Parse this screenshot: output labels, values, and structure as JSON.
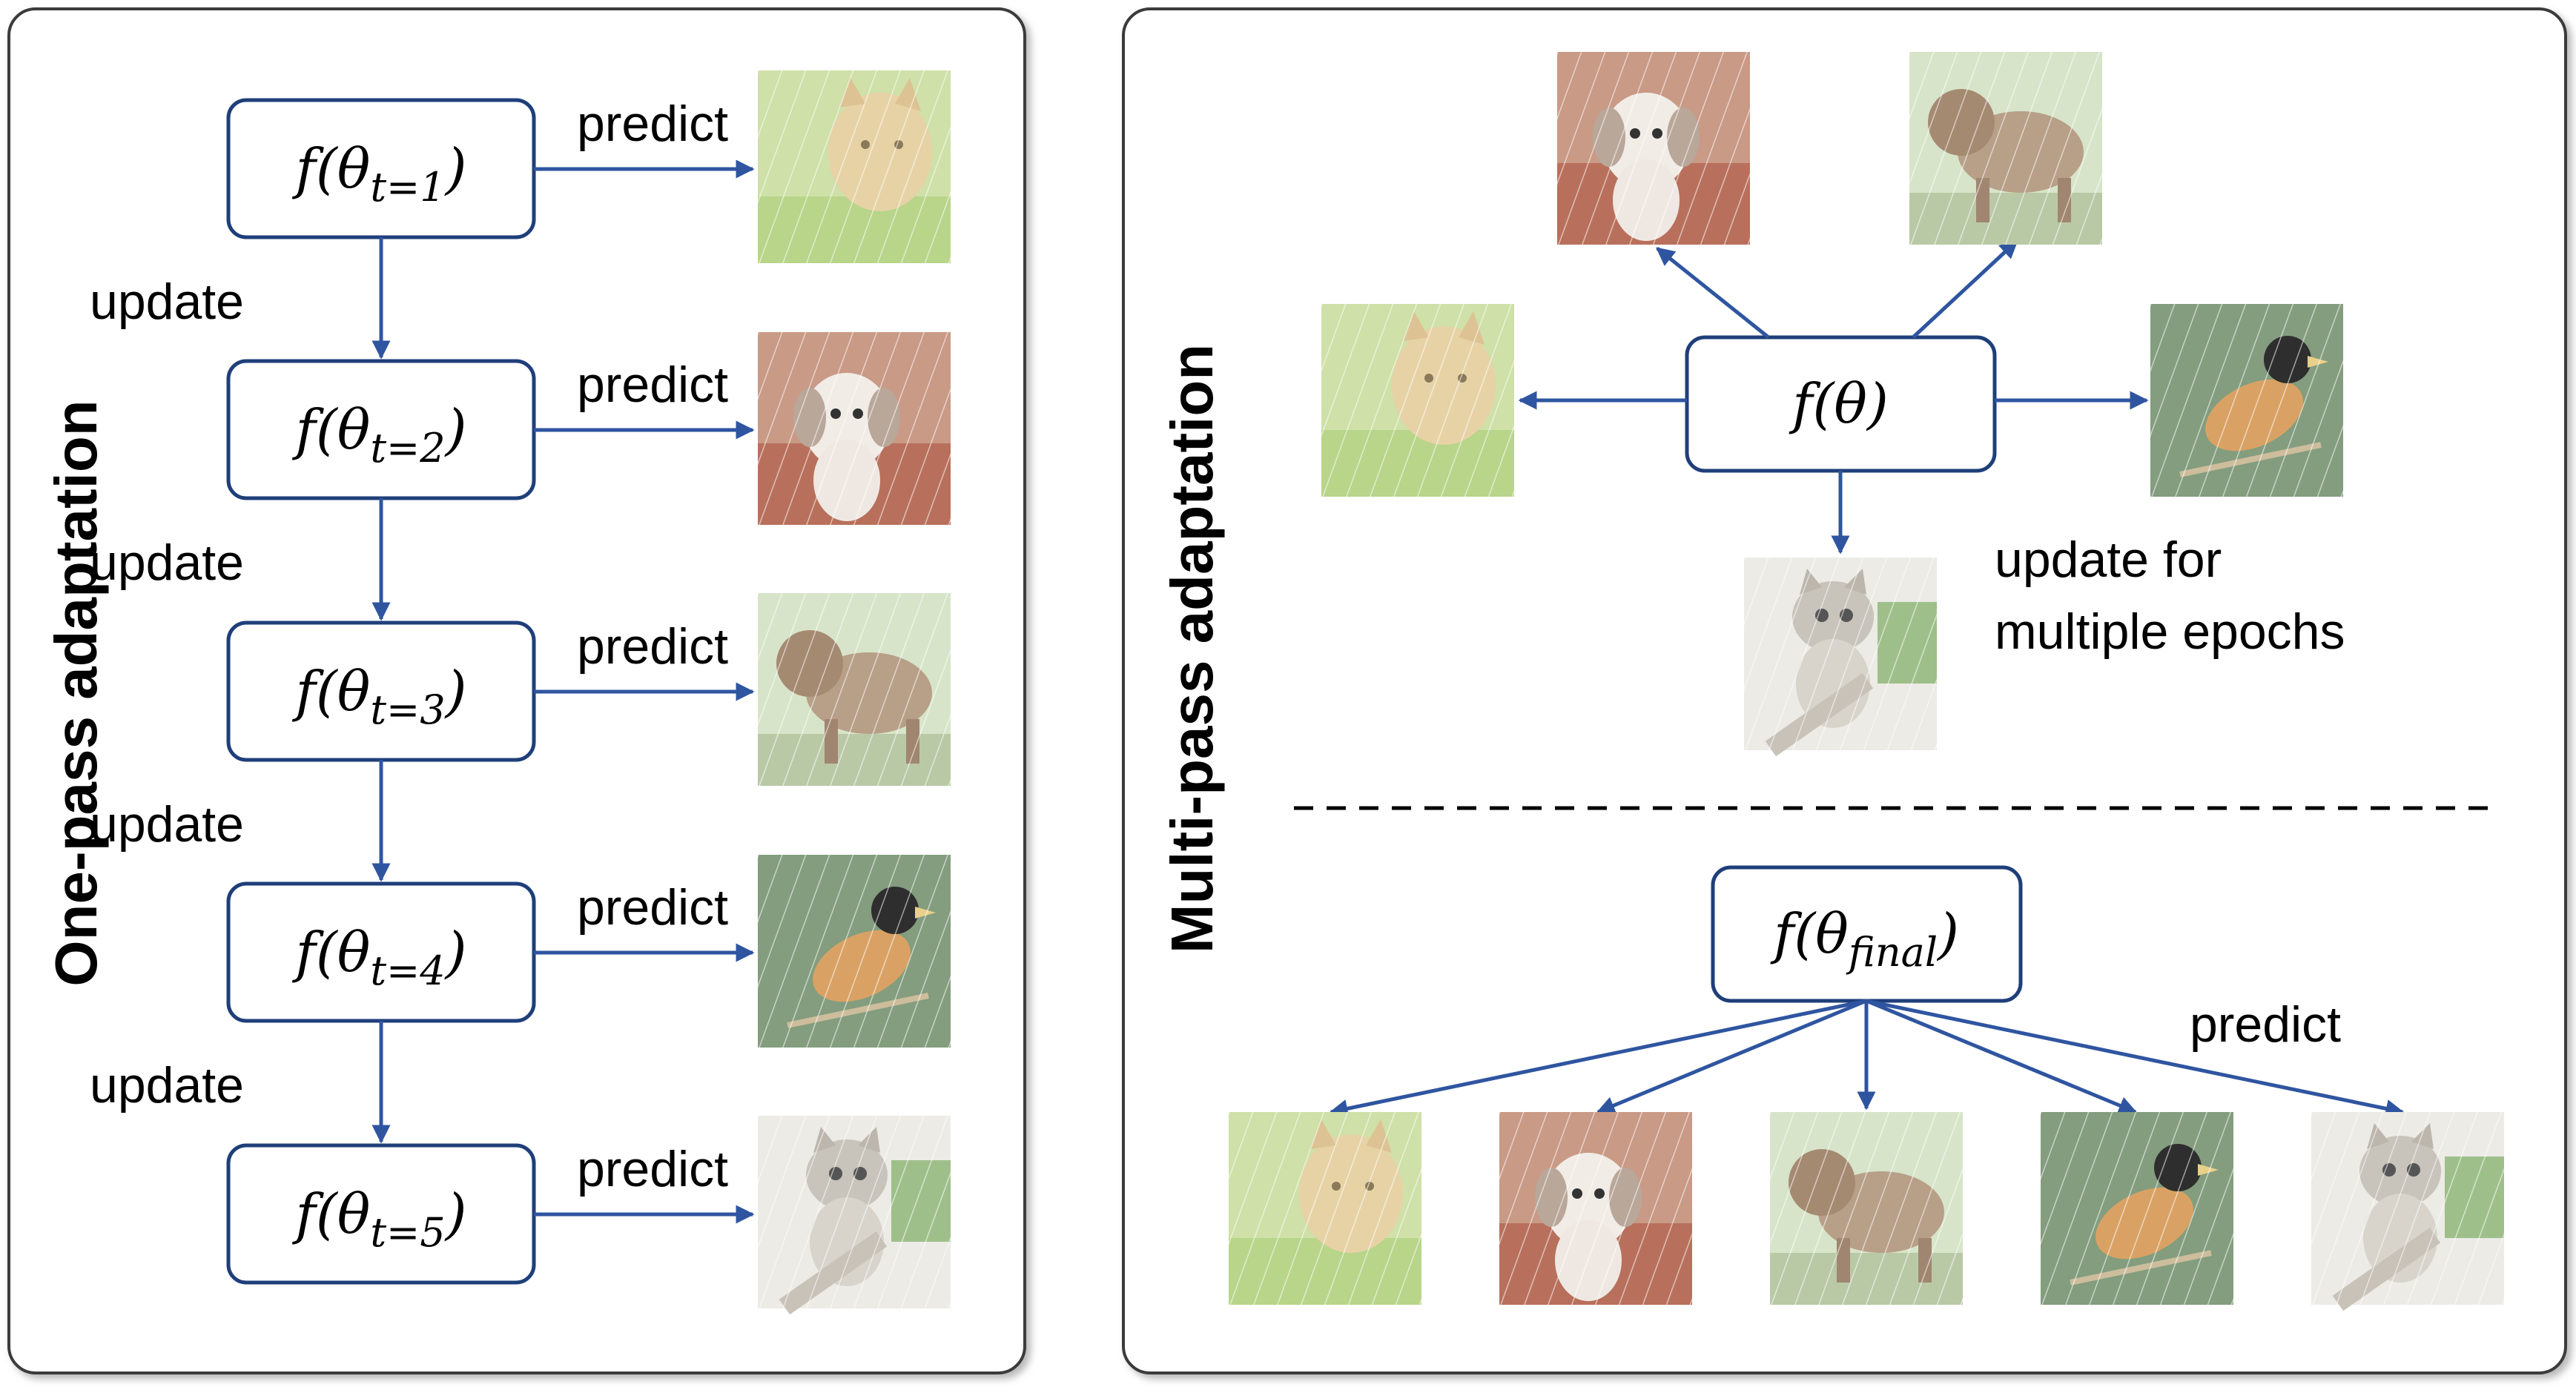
{
  "left_panel": {
    "title": "One-pass adaptation",
    "models": [
      {
        "f": "f",
        "paren_open": "(",
        "theta": "θ",
        "sub": "t=1",
        "paren_close": ")"
      },
      {
        "f": "f",
        "paren_open": "(",
        "theta": "θ",
        "sub": "t=2",
        "paren_close": ")"
      },
      {
        "f": "f",
        "paren_open": "(",
        "theta": "θ",
        "sub": "t=3",
        "paren_close": ")"
      },
      {
        "f": "f",
        "paren_open": "(",
        "theta": "θ",
        "sub": "t=4",
        "paren_close": ")"
      },
      {
        "f": "f",
        "paren_open": "(",
        "theta": "θ",
        "sub": "t=5",
        "paren_close": ")"
      }
    ],
    "predict_label": "predict",
    "update_label": "update"
  },
  "right_panel": {
    "title": "Multi-pass adaptation",
    "center_model": {
      "text": "f(θ)"
    },
    "update_text_line1": "update for",
    "update_text_line2": "multiple epochs",
    "final_model": {
      "f": "f",
      "paren_open": "(",
      "theta": "θ",
      "sub": "final",
      "paren_close": ")"
    },
    "predict_label": "predict"
  },
  "images": [
    {
      "id": "cat",
      "icon": "cat-image"
    },
    {
      "id": "puppy",
      "icon": "puppy-image"
    },
    {
      "id": "dog",
      "icon": "dog-image"
    },
    {
      "id": "bird",
      "icon": "bird-image"
    },
    {
      "id": "kitten",
      "icon": "kitten-image"
    }
  ],
  "colors": {
    "arrow": "#2f55a0",
    "box_border": "#1f3f7a"
  }
}
